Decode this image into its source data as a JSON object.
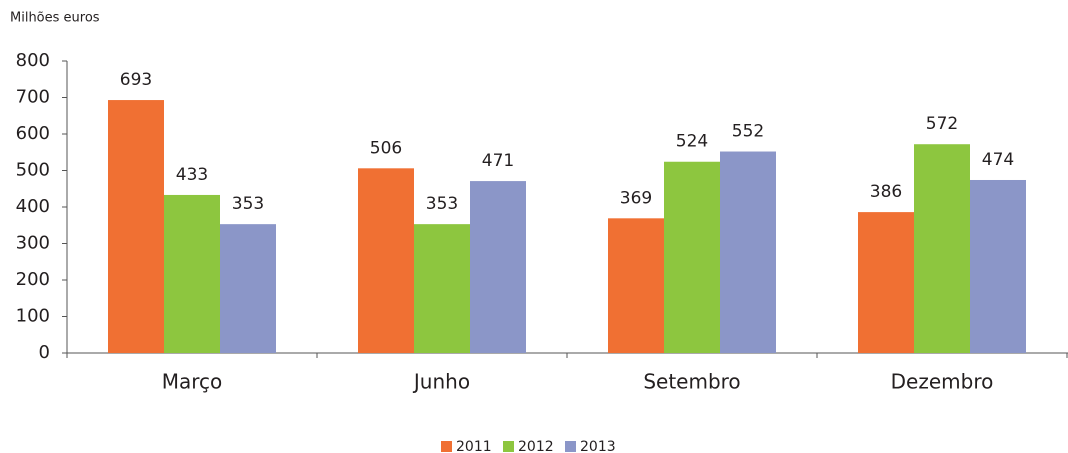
{
  "chart_data": {
    "type": "bar",
    "y_label": "Milhões euros",
    "categories": [
      "Março",
      "Junho",
      "Setembro",
      "Dezembro"
    ],
    "series": [
      {
        "name": "2011",
        "color": "#f07033",
        "values": [
          693,
          506,
          369,
          386
        ]
      },
      {
        "name": "2012",
        "color": "#8dc63f",
        "values": [
          433,
          353,
          524,
          572
        ]
      },
      {
        "name": "2013",
        "color": "#8b96c8",
        "values": [
          353,
          471,
          552,
          474
        ]
      }
    ],
    "ylim": [
      0,
      800
    ],
    "yticks": [
      0,
      100,
      200,
      300,
      400,
      500,
      600,
      700,
      800
    ],
    "grid": false,
    "legend": "bottom"
  }
}
